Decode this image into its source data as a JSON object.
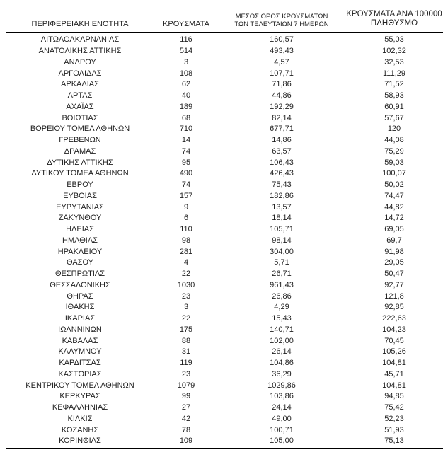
{
  "table": {
    "headers": {
      "region": "ΠΕΡΙΦΕΡΕΙΑΚΗ ΕΝΟΤΗΤΑ",
      "cases": "ΚΡΟΥΣΜΑΤΑ",
      "avg7_line1": "ΜΕΣΟΣ ΟΡΟΣ ΚΡΟΥΣΜΑΤΩΝ",
      "avg7_line2": "ΤΩΝ ΤΕΛΕΥΤΑΙΩΝ 7 ΗΜΕΡΩΝ",
      "per100k_line1": "ΚΡΟΥΣΜΑΤΑ ΑΝΑ 100000",
      "per100k_line2": "ΠΛΗΘΥΣΜΟ"
    },
    "rows": [
      {
        "region": "ΑΙΤΩΛΟΑΚΑΡΝΑΝΙΑΣ",
        "cases": "116",
        "avg7": "160,57",
        "per100k": "55,03"
      },
      {
        "region": "ΑΝΑΤΟΛΙΚΗΣ ΑΤΤΙΚΗΣ",
        "cases": "514",
        "avg7": "493,43",
        "per100k": "102,32"
      },
      {
        "region": "ΑΝΔΡΟΥ",
        "cases": "3",
        "avg7": "4,57",
        "per100k": "32,53"
      },
      {
        "region": "ΑΡΓΟΛΙΔΑΣ",
        "cases": "108",
        "avg7": "107,71",
        "per100k": "111,29"
      },
      {
        "region": "ΑΡΚΑΔΙΑΣ",
        "cases": "62",
        "avg7": "71,86",
        "per100k": "71,52"
      },
      {
        "region": "ΑΡΤΑΣ",
        "cases": "40",
        "avg7": "44,86",
        "per100k": "58,93"
      },
      {
        "region": "ΑΧΑΪΑΣ",
        "cases": "189",
        "avg7": "192,29",
        "per100k": "60,91"
      },
      {
        "region": "ΒΟΙΩΤΙΑΣ",
        "cases": "68",
        "avg7": "82,14",
        "per100k": "57,67"
      },
      {
        "region": "ΒΟΡΕΙΟΥ ΤΟΜΕΑ ΑΘΗΝΩΝ",
        "cases": "710",
        "avg7": "677,71",
        "per100k": "120"
      },
      {
        "region": "ΓΡΕΒΕΝΩΝ",
        "cases": "14",
        "avg7": "14,86",
        "per100k": "44,08"
      },
      {
        "region": "ΔΡΑΜΑΣ",
        "cases": "74",
        "avg7": "63,57",
        "per100k": "75,29"
      },
      {
        "region": "ΔΥΤΙΚΗΣ ΑΤΤΙΚΗΣ",
        "cases": "95",
        "avg7": "106,43",
        "per100k": "59,03"
      },
      {
        "region": "ΔΥΤΙΚΟΥ ΤΟΜΕΑ ΑΘΗΝΩΝ",
        "cases": "490",
        "avg7": "426,43",
        "per100k": "100,07"
      },
      {
        "region": "ΕΒΡΟΥ",
        "cases": "74",
        "avg7": "75,43",
        "per100k": "50,02"
      },
      {
        "region": "ΕΥΒΟΙΑΣ",
        "cases": "157",
        "avg7": "182,86",
        "per100k": "74,47"
      },
      {
        "region": "ΕΥΡΥΤΑΝΙΑΣ",
        "cases": "9",
        "avg7": "13,57",
        "per100k": "44,82"
      },
      {
        "region": "ΖΑΚΥΝΘΟΥ",
        "cases": "6",
        "avg7": "18,14",
        "per100k": "14,72"
      },
      {
        "region": "ΗΛΕΙΑΣ",
        "cases": "110",
        "avg7": "105,71",
        "per100k": "69,05"
      },
      {
        "region": "ΗΜΑΘΙΑΣ",
        "cases": "98",
        "avg7": "98,14",
        "per100k": "69,7"
      },
      {
        "region": "ΗΡΑΚΛΕΙΟΥ",
        "cases": "281",
        "avg7": "304,00",
        "per100k": "91,98"
      },
      {
        "region": "ΘΑΣΟΥ",
        "cases": "4",
        "avg7": "5,71",
        "per100k": "29,05"
      },
      {
        "region": "ΘΕΣΠΡΩΤΙΑΣ",
        "cases": "22",
        "avg7": "26,71",
        "per100k": "50,47"
      },
      {
        "region": "ΘΕΣΣΑΛΟΝΙΚΗΣ",
        "cases": "1030",
        "avg7": "961,43",
        "per100k": "92,77"
      },
      {
        "region": "ΘΗΡΑΣ",
        "cases": "23",
        "avg7": "26,86",
        "per100k": "121,8"
      },
      {
        "region": "ΙΘΑΚΗΣ",
        "cases": "3",
        "avg7": "4,29",
        "per100k": "92,85"
      },
      {
        "region": "ΙΚΑΡΙΑΣ",
        "cases": "22",
        "avg7": "15,43",
        "per100k": "222,63"
      },
      {
        "region": "ΙΩΑΝΝΙΝΩΝ",
        "cases": "175",
        "avg7": "140,71",
        "per100k": "104,23"
      },
      {
        "region": "ΚΑΒΑΛΑΣ",
        "cases": "88",
        "avg7": "102,00",
        "per100k": "70,45"
      },
      {
        "region": "ΚΑΛΥΜΝΟΥ",
        "cases": "31",
        "avg7": "26,14",
        "per100k": "105,26"
      },
      {
        "region": "ΚΑΡΔΙΤΣΑΣ",
        "cases": "119",
        "avg7": "104,86",
        "per100k": "104,81"
      },
      {
        "region": "ΚΑΣΤΟΡΙΑΣ",
        "cases": "23",
        "avg7": "36,29",
        "per100k": "45,71"
      },
      {
        "region": "ΚΕΝΤΡΙΚΟΥ ΤΟΜΕΑ ΑΘΗΝΩΝ",
        "cases": "1079",
        "avg7": "1029,86",
        "per100k": "104,81"
      },
      {
        "region": "ΚΕΡΚΥΡΑΣ",
        "cases": "99",
        "avg7": "103,86",
        "per100k": "94,85"
      },
      {
        "region": "ΚΕΦΑΛΛΗΝΙΑΣ",
        "cases": "27",
        "avg7": "24,14",
        "per100k": "75,42"
      },
      {
        "region": "ΚΙΛΚΙΣ",
        "cases": "42",
        "avg7": "49,00",
        "per100k": "52,23"
      },
      {
        "region": "ΚΟΖΑΝΗΣ",
        "cases": "78",
        "avg7": "100,71",
        "per100k": "51,93"
      },
      {
        "region": "ΚΟΡΙΝΘΙΑΣ",
        "cases": "109",
        "avg7": "105,00",
        "per100k": "75,13"
      }
    ]
  }
}
